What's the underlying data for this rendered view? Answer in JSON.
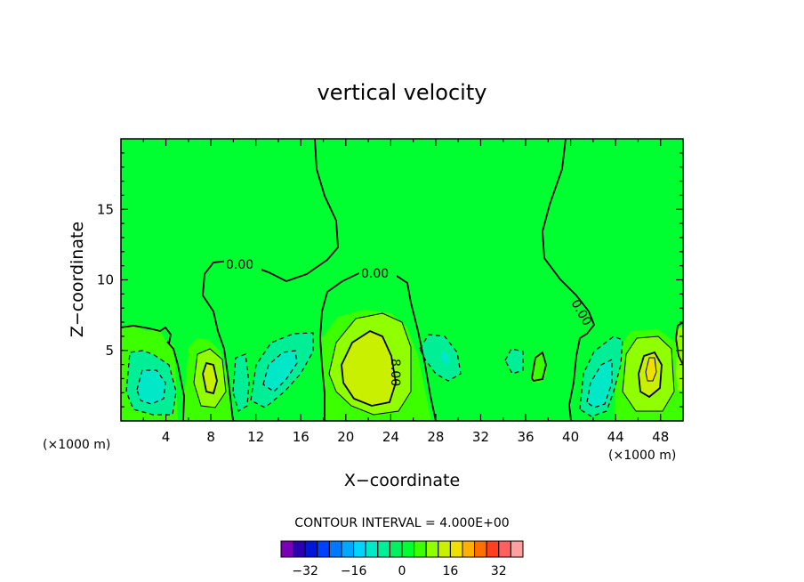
{
  "chart_data": {
    "type": "contour",
    "title": "vertical velocity",
    "xlabel": "X−coordinate",
    "ylabel": "Z−coordinate",
    "x_unit_left": "(×1000 m)",
    "x_unit_right": "(×1000 m)",
    "xlim": [
      0,
      50
    ],
    "ylim": [
      0,
      20
    ],
    "x_ticks": [
      4,
      8,
      12,
      16,
      20,
      24,
      28,
      32,
      36,
      40,
      44,
      48
    ],
    "x_tick_labels": [
      "4",
      "8",
      "12",
      "16",
      "20",
      "24",
      "28",
      "32",
      "36",
      "40",
      "44",
      "48"
    ],
    "y_ticks": [
      5,
      10,
      15
    ],
    "y_tick_labels": [
      "5",
      "10",
      "15"
    ],
    "contour_interval_text": "CONTOUR INTERVAL = 4.000E+00",
    "contour_interval": 4.0,
    "contour_labels": [
      "0.00",
      "0.00",
      "0.00",
      "8.00"
    ],
    "colorbar": {
      "levels": [
        -36,
        -32,
        -28,
        -24,
        -20,
        -16,
        -12,
        -8,
        -4,
        0,
        4,
        8,
        12,
        16,
        20,
        24,
        28,
        32,
        36
      ],
      "tick_values": [
        -32,
        -16,
        0,
        16,
        32
      ],
      "tick_labels": [
        "−32",
        "−16",
        "0",
        "16",
        "32"
      ],
      "colors": [
        "#7a00b8",
        "#2a00b0",
        "#0016d8",
        "#0040ff",
        "#0078ff",
        "#00a8ff",
        "#00d4ff",
        "#00e8c8",
        "#00ee96",
        "#00f060",
        "#00ff30",
        "#3cff00",
        "#90ff00",
        "#c8f000",
        "#f0e000",
        "#ffb000",
        "#ff7000",
        "#ff4020",
        "#ff6060",
        "#ffa0a0"
      ]
    },
    "positive_extrema": [
      {
        "x": 8.0,
        "z": 3.0
      },
      {
        "x": 21.5,
        "z": 4.2
      },
      {
        "x": 47.0,
        "z": 4.0
      }
    ],
    "negative_extrema": [
      {
        "x": 3.0,
        "z": 3.0
      },
      {
        "x": 14.0,
        "z": 4.5
      },
      {
        "x": 29.0,
        "z": 4.2
      },
      {
        "x": 43.0,
        "z": 2.5
      }
    ]
  }
}
